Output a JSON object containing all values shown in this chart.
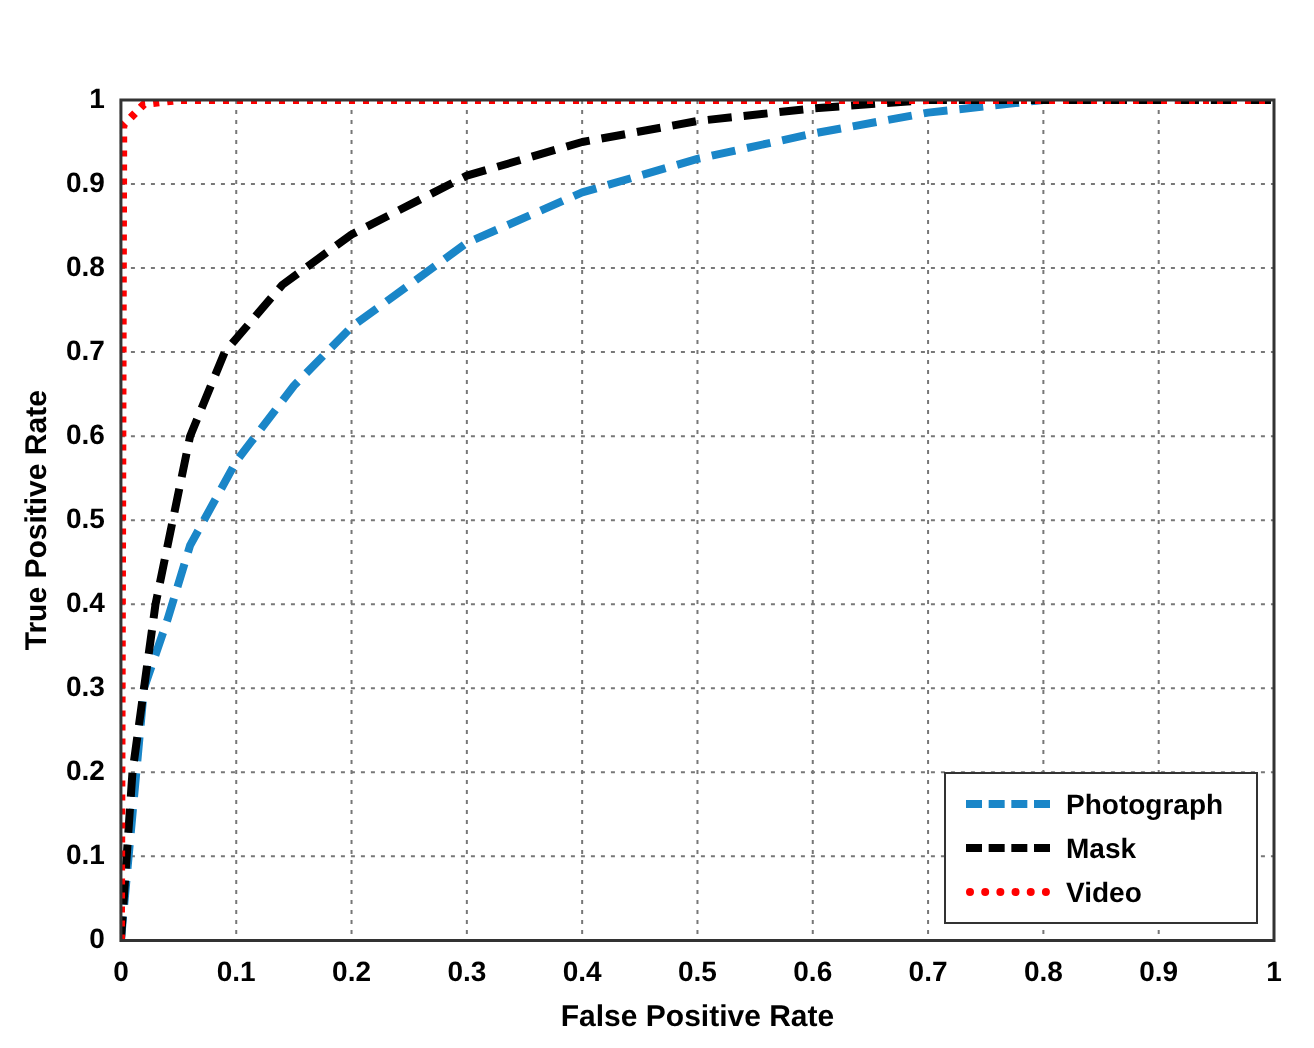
{
  "chart_data": {
    "type": "line",
    "xlabel": "False Positive Rate",
    "ylabel": "True Positive Rate",
    "xlim": [
      0,
      1
    ],
    "xticks": [
      0,
      0.1,
      0.2,
      0.3,
      0.4,
      0.5,
      0.6,
      0.7,
      0.8,
      0.9,
      1
    ],
    "ylim": [
      0,
      1
    ],
    "yticks": [
      0,
      0.1,
      0.2,
      0.3,
      0.4,
      0.5,
      0.6,
      0.7,
      0.8,
      0.9,
      1
    ],
    "grid": true,
    "legend": "bottom right",
    "marker": "none",
    "series": [
      {
        "name": "Photograph",
        "color": "#1a86c8",
        "line_style": "dashed",
        "x": [
          0,
          0.01,
          0.02,
          0.04,
          0.06,
          0.1,
          0.15,
          0.2,
          0.3,
          0.4,
          0.5,
          0.6,
          0.7,
          0.8,
          1
        ],
        "values": [
          0,
          0.15,
          0.3,
          0.38,
          0.47,
          0.57,
          0.66,
          0.73,
          0.83,
          0.89,
          0.93,
          0.96,
          0.985,
          1,
          1
        ]
      },
      {
        "name": "Mask",
        "color": "#000000",
        "line_style": "dashed",
        "x": [
          0,
          0.005,
          0.01,
          0.02,
          0.03,
          0.045,
          0.06,
          0.09,
          0.14,
          0.2,
          0.3,
          0.4,
          0.5,
          0.6,
          0.7,
          1
        ],
        "values": [
          0,
          0.1,
          0.2,
          0.3,
          0.4,
          0.5,
          0.6,
          0.7,
          0.78,
          0.84,
          0.91,
          0.95,
          0.975,
          0.99,
          1,
          1
        ]
      },
      {
        "name": "Video",
        "color": "#ff0000",
        "line_style": "dotted",
        "x": [
          0,
          0.002,
          0.02,
          0.05,
          1
        ],
        "values": [
          0,
          0.97,
          0.995,
          1,
          1
        ]
      }
    ]
  }
}
